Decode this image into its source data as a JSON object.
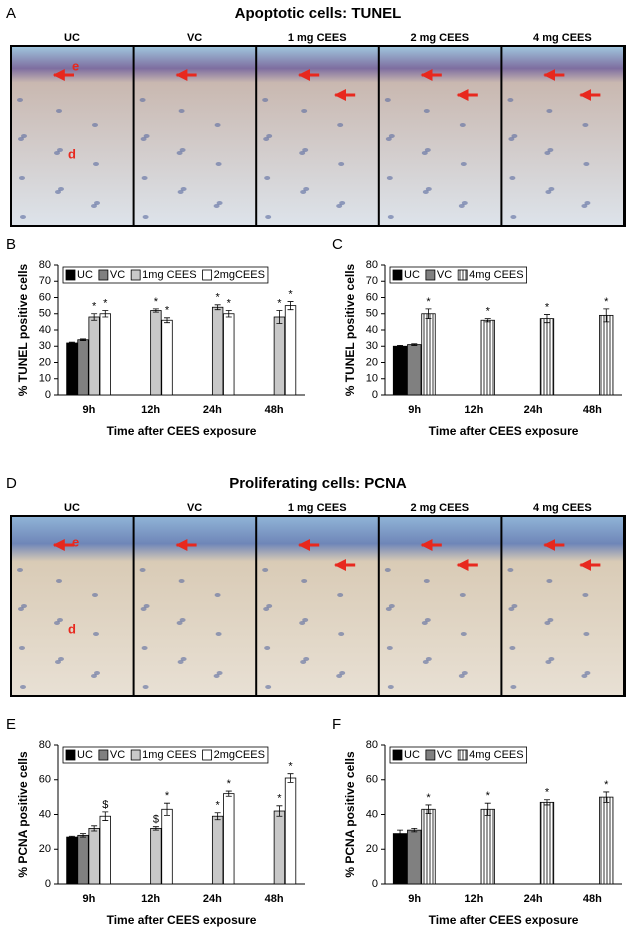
{
  "figure": {
    "sections": [
      {
        "letter": "A",
        "title": "Apoptotic cells: TUNEL",
        "images": [
          "UC",
          "VC",
          "1 mg CEES",
          "2 mg CEES",
          "4 mg CEES"
        ],
        "markers": [
          "e",
          "d"
        ]
      },
      {
        "letter": "D",
        "title": "Proliferating cells: PCNA",
        "images": [
          "UC",
          "VC",
          "1 mg CEES",
          "2 mg CEES",
          "4 mg CEES"
        ],
        "markers": [
          "e",
          "d"
        ]
      }
    ]
  },
  "chart_data": [
    {
      "type": "bar",
      "panel": "B",
      "ylabel": "% TUNEL positive cells",
      "xlabel": "Time after CEES exposure",
      "categories": [
        "9h",
        "12h",
        "24h",
        "48h"
      ],
      "ylim": [
        0,
        80
      ],
      "yticks": [
        0,
        10,
        20,
        30,
        40,
        50,
        60,
        70,
        80
      ],
      "legend": "top",
      "series": [
        {
          "name": "UC",
          "color": "#000000",
          "values": [
            32,
            null,
            null,
            null
          ],
          "errors": [
            0.5,
            null,
            null,
            null
          ],
          "significance": [
            null,
            null,
            null,
            null
          ]
        },
        {
          "name": "VC",
          "color": "#808080",
          "values": [
            34,
            null,
            null,
            null
          ],
          "errors": [
            0.5,
            null,
            null,
            null
          ],
          "significance": [
            null,
            null,
            null,
            null
          ]
        },
        {
          "name": "1mg CEES",
          "color": "#c8c8c8",
          "values": [
            48,
            52,
            54,
            48
          ],
          "errors": [
            2,
            1,
            1.5,
            4
          ],
          "significance": [
            "*",
            "*",
            "*",
            "*"
          ]
        },
        {
          "name": "2mgCEES",
          "color": "#ffffff",
          "values": [
            50,
            46,
            50,
            55
          ],
          "errors": [
            2,
            1.5,
            2,
            2.5
          ],
          "significance": [
            "*",
            "*",
            "*",
            "*"
          ]
        }
      ]
    },
    {
      "type": "bar",
      "panel": "C",
      "ylabel": "% TUNEL positive cells",
      "xlabel": "Time after CEES exposure",
      "categories": [
        "9h",
        "12h",
        "24h",
        "48h"
      ],
      "ylim": [
        0,
        80
      ],
      "yticks": [
        0,
        10,
        20,
        30,
        40,
        50,
        60,
        70,
        80
      ],
      "legend": "top",
      "series": [
        {
          "name": "UC",
          "color": "#000000",
          "values": [
            30,
            null,
            null,
            null
          ],
          "errors": [
            0.5,
            null,
            null,
            null
          ],
          "significance": [
            null,
            null,
            null,
            null
          ]
        },
        {
          "name": "VC",
          "color": "#808080",
          "values": [
            31,
            null,
            null,
            null
          ],
          "errors": [
            0.5,
            null,
            null,
            null
          ],
          "significance": [
            null,
            null,
            null,
            null
          ]
        },
        {
          "name": "4mg CEES",
          "color": "#ffffff",
          "pattern": "vertical-lines",
          "values": [
            50,
            46,
            47,
            49
          ],
          "errors": [
            3,
            1,
            2.5,
            4
          ],
          "significance": [
            "*",
            "*",
            "*",
            "*"
          ]
        }
      ]
    },
    {
      "type": "bar",
      "panel": "E",
      "ylabel": "% PCNA positive cells",
      "xlabel": "Time after CEES exposure",
      "categories": [
        "9h",
        "12h",
        "24h",
        "48h"
      ],
      "ylim": [
        0,
        80
      ],
      "yticks": [
        0,
        20,
        40,
        60,
        80
      ],
      "legend": "top",
      "series": [
        {
          "name": "UC",
          "color": "#000000",
          "values": [
            27,
            null,
            null,
            null
          ],
          "errors": [
            0.5,
            null,
            null,
            null
          ],
          "significance": [
            null,
            null,
            null,
            null
          ]
        },
        {
          "name": "VC",
          "color": "#808080",
          "values": [
            28,
            null,
            null,
            null
          ],
          "errors": [
            1,
            null,
            null,
            null
          ],
          "significance": [
            null,
            null,
            null,
            null
          ]
        },
        {
          "name": "1mg CEES",
          "color": "#c8c8c8",
          "values": [
            32,
            32,
            39,
            42
          ],
          "errors": [
            1.5,
            1,
            2,
            3
          ],
          "significance": [
            null,
            "$",
            "*",
            "*"
          ]
        },
        {
          "name": "2mgCEES",
          "color": "#ffffff",
          "values": [
            39,
            43,
            52,
            61
          ],
          "errors": [
            2.5,
            3.5,
            1.5,
            2.5
          ],
          "significance": [
            "$",
            "*",
            "*",
            "*"
          ]
        }
      ]
    },
    {
      "type": "bar",
      "panel": "F",
      "ylabel": "% PCNA positive cells",
      "xlabel": "Time after CEES exposure",
      "categories": [
        "9h",
        "12h",
        "24h",
        "48h"
      ],
      "ylim": [
        0,
        80
      ],
      "yticks": [
        0,
        20,
        40,
        60,
        80
      ],
      "legend": "top",
      "series": [
        {
          "name": "UC",
          "color": "#000000",
          "values": [
            29,
            null,
            null,
            null
          ],
          "errors": [
            2,
            null,
            null,
            null
          ],
          "significance": [
            null,
            null,
            null,
            null
          ]
        },
        {
          "name": "VC",
          "color": "#808080",
          "values": [
            31,
            null,
            null,
            null
          ],
          "errors": [
            1,
            null,
            null,
            null
          ],
          "significance": [
            null,
            null,
            null,
            null
          ]
        },
        {
          "name": "4mg CEES",
          "color": "#ffffff",
          "pattern": "vertical-lines",
          "values": [
            43,
            43,
            47,
            50
          ],
          "errors": [
            2.5,
            3.5,
            1.5,
            3
          ],
          "significance": [
            "*",
            "*",
            "*",
            "*"
          ]
        }
      ]
    }
  ]
}
